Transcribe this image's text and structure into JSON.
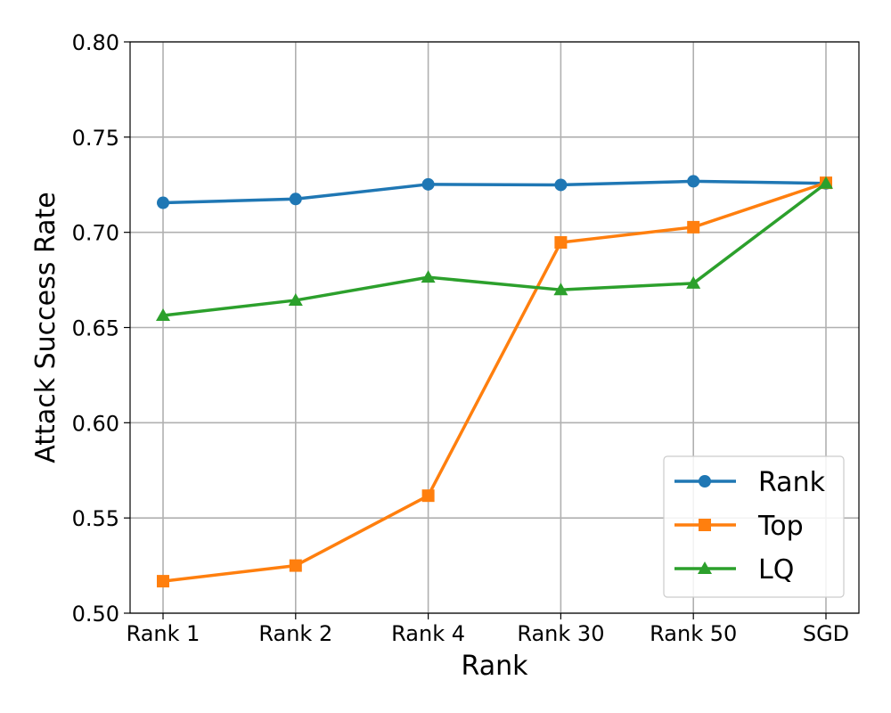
{
  "chart_data": {
    "type": "line",
    "categories": [
      "Rank 1",
      "Rank 2",
      "Rank 4",
      "Rank 30",
      "Rank 50",
      "SGD"
    ],
    "series": [
      {
        "name": "Rank",
        "color": "#1f77b4",
        "marker": "circle",
        "values": [
          0.7155,
          0.7175,
          0.7252,
          0.7249,
          0.7268,
          0.7257
        ]
      },
      {
        "name": "Top",
        "color": "#ff7f0e",
        "marker": "square",
        "values": [
          0.5168,
          0.525,
          0.5617,
          0.6947,
          0.7027,
          0.726
        ]
      },
      {
        "name": "LQ",
        "color": "#2ca02c",
        "marker": "triangle",
        "values": [
          0.6563,
          0.6643,
          0.6764,
          0.6698,
          0.6732,
          0.7257
        ]
      }
    ],
    "xlabel": "Rank",
    "ylabel": "Attack Success Rate",
    "ylim": [
      0.5,
      0.8
    ],
    "yticks": [
      "0.50",
      "0.55",
      "0.60",
      "0.65",
      "0.70",
      "0.75",
      "0.80"
    ],
    "grid": true,
    "legend_position": "bottom-right"
  }
}
